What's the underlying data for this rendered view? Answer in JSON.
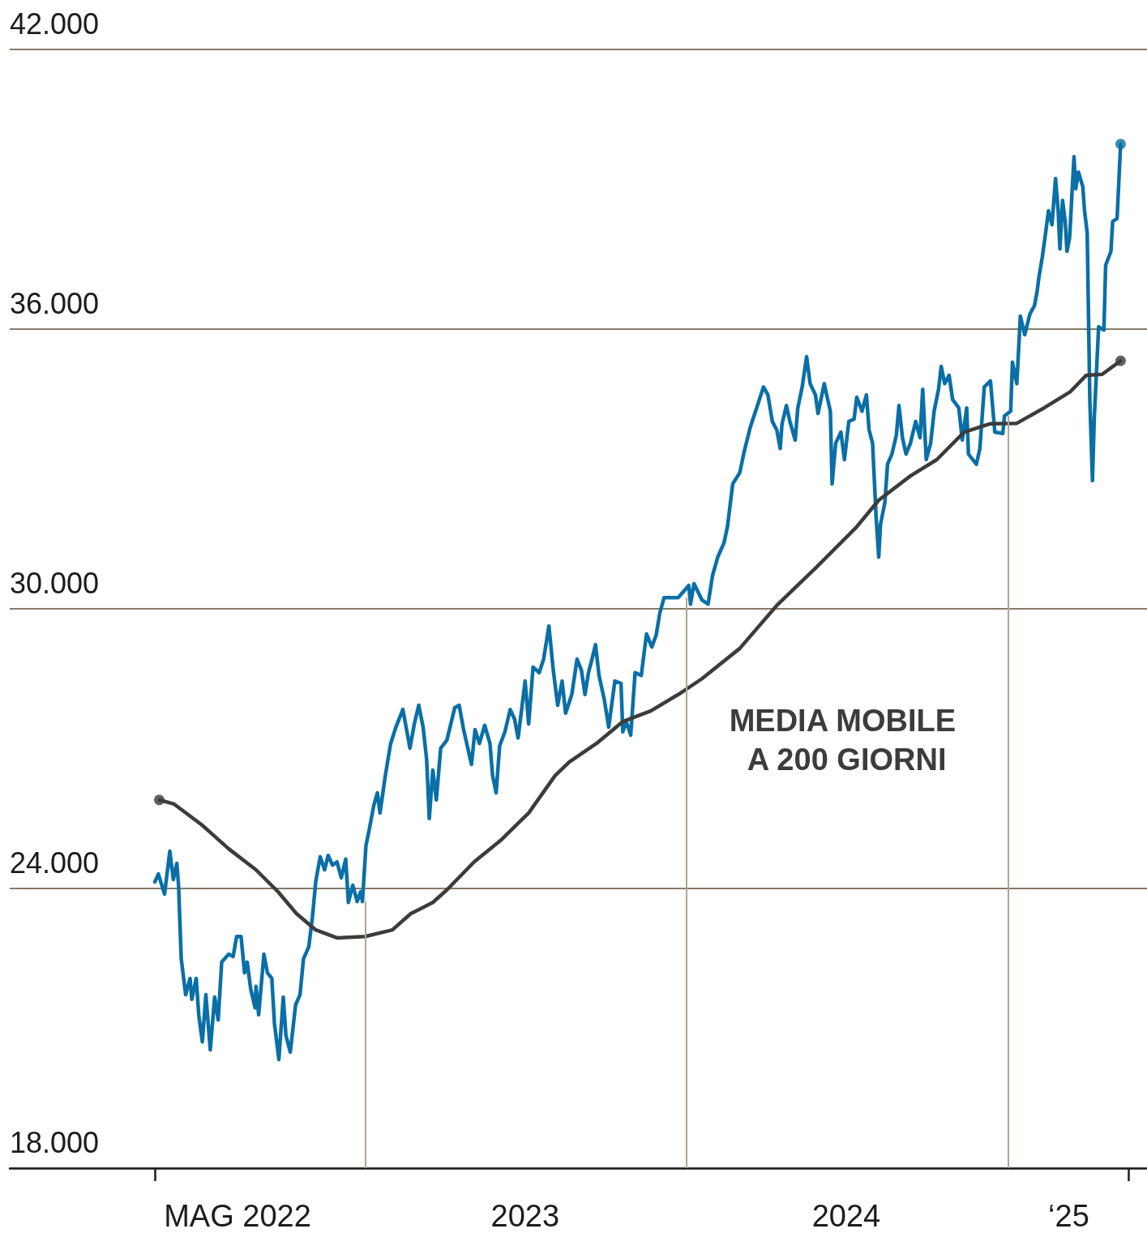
{
  "chart_data": {
    "type": "line",
    "xlim": [
      "2021-11-23",
      "2025-06-08"
    ],
    "xticks": [
      {
        "value": "2022-05-07",
        "label": null
      },
      {
        "value": "2022-08-09",
        "label": "MAG 2022"
      },
      {
        "value": "2023-07-02",
        "label": "2023"
      },
      {
        "value": "2024-07-01",
        "label": "2024"
      },
      {
        "value": "2025-03-11",
        "label": "‘25"
      },
      {
        "value": "2025-05-18",
        "label": null
      }
    ],
    "ylim": [
      18000,
      42000
    ],
    "yticks": [
      {
        "value": 18000,
        "label": "18.000"
      },
      {
        "value": 24000,
        "label": "24.000"
      },
      {
        "value": 30000,
        "label": "30.000"
      },
      {
        "value": 36000,
        "label": "36.000"
      },
      {
        "value": 42000,
        "label": "42.000"
      }
    ],
    "grid": "y",
    "ref_lines": [
      {
        "axis": "x",
        "value": "2023-01-01",
        "color": "#b4a48e"
      },
      {
        "axis": "x",
        "value": "2024-01-01",
        "color": "#b4a48e"
      },
      {
        "axis": "x",
        "value": "2025-01-01",
        "color": "#b4a48e"
      }
    ],
    "series": [
      {
        "color": "#0a6fa6",
        "x": [
          "2022-05-07",
          "2022-05-11",
          "2022-05-18",
          "2022-05-24",
          "2022-05-28",
          "2022-06-01",
          "2022-06-03",
          "2022-06-06",
          "2022-06-11",
          "2022-06-16",
          "2022-06-18",
          "2022-06-23",
          "2022-06-26",
          "2022-06-30",
          "2022-07-04",
          "2022-07-09",
          "2022-07-14",
          "2022-07-18",
          "2022-07-22",
          "2022-07-30",
          "2022-08-04",
          "2022-08-08",
          "2022-08-13",
          "2022-08-17",
          "2022-08-20",
          "2022-08-24",
          "2022-08-29",
          "2022-08-30",
          "2022-09-02",
          "2022-09-08",
          "2022-09-12",
          "2022-09-17",
          "2022-09-20",
          "2022-09-25",
          "2022-09-30",
          "2022-10-03",
          "2022-10-08",
          "2022-10-14",
          "2022-10-19",
          "2022-10-23",
          "2022-10-29",
          "2022-11-02",
          "2022-11-06",
          "2022-11-11",
          "2022-11-16",
          "2022-11-20",
          "2022-11-25",
          "2022-11-30",
          "2022-12-05",
          "2022-12-10",
          "2022-12-13",
          "2022-12-18",
          "2022-12-23",
          "2022-12-27",
          "2022-12-29",
          "2023-01-02",
          "2023-01-06",
          "2023-01-11",
          "2023-01-15",
          "2023-01-18",
          "2023-01-24",
          "2023-01-30",
          "2023-02-05",
          "2023-02-13",
          "2023-02-21",
          "2023-02-26",
          "2023-03-03",
          "2023-03-08",
          "2023-03-12",
          "2023-03-15",
          "2023-03-19",
          "2023-03-23",
          "2023-03-28",
          "2023-04-04",
          "2023-04-13",
          "2023-04-18",
          "2023-04-23",
          "2023-05-02",
          "2023-05-06",
          "2023-05-11",
          "2023-05-17",
          "2023-05-23",
          "2023-05-26",
          "2023-05-30",
          "2023-06-03",
          "2023-06-09",
          "2023-06-15",
          "2023-06-20",
          "2023-06-24",
          "2023-07-02",
          "2023-07-06",
          "2023-07-11",
          "2023-07-18",
          "2023-07-23",
          "2023-07-29",
          "2023-08-03",
          "2023-08-08",
          "2023-08-13",
          "2023-08-17",
          "2023-08-24",
          "2023-08-30",
          "2023-09-04",
          "2023-09-08",
          "2023-09-12",
          "2023-09-16",
          "2023-09-20",
          "2023-09-24",
          "2023-09-30",
          "2023-10-05",
          "2023-10-12",
          "2023-10-19",
          "2023-10-21",
          "2023-10-25",
          "2023-10-30",
          "2023-11-04",
          "2023-11-11",
          "2023-11-17",
          "2023-11-23",
          "2023-11-28",
          "2023-12-02",
          "2023-12-07",
          "2023-12-23",
          "2024-01-04",
          "2024-01-06",
          "2024-01-10",
          "2024-01-19",
          "2024-01-26",
          "2024-01-31",
          "2024-02-06",
          "2024-02-13",
          "2024-02-17",
          "2024-02-23",
          "2024-03-02",
          "2024-03-07",
          "2024-03-14",
          "2024-03-20",
          "2024-03-29",
          "2024-04-03",
          "2024-04-08",
          "2024-04-13",
          "2024-04-17",
          "2024-04-19",
          "2024-04-24",
          "2024-04-28",
          "2024-05-04",
          "2024-05-07",
          "2024-05-12",
          "2024-05-17",
          "2024-05-21",
          "2024-05-27",
          "2024-05-30",
          "2024-06-06",
          "2024-06-10",
          "2024-06-13",
          "2024-06-15",
          "2024-06-19",
          "2024-06-25",
          "2024-06-29",
          "2024-07-04",
          "2024-07-10",
          "2024-07-13",
          "2024-07-19",
          "2024-07-24",
          "2024-07-27",
          "2024-07-31",
          "2024-08-04",
          "2024-08-07",
          "2024-08-09",
          "2024-08-14",
          "2024-08-17",
          "2024-08-22",
          "2024-08-27",
          "2024-08-30",
          "2024-09-03",
          "2024-09-07",
          "2024-09-12",
          "2024-09-18",
          "2024-09-23",
          "2024-09-26",
          "2024-09-30",
          "2024-10-05",
          "2024-10-09",
          "2024-10-14",
          "2024-10-17",
          "2024-10-21",
          "2024-10-26",
          "2024-10-30",
          "2024-11-06",
          "2024-11-10",
          "2024-11-15",
          "2024-11-17",
          "2024-11-26",
          "2024-11-30",
          "2024-12-05",
          "2024-12-12",
          "2024-12-17",
          "2024-12-26",
          "2024-12-28",
          "2025-01-04",
          "2025-01-06",
          "2025-01-11",
          "2025-01-15",
          "2025-01-20",
          "2025-01-26",
          "2025-01-31",
          "2025-02-03",
          "2025-02-05",
          "2025-02-09",
          "2025-02-12",
          "2025-02-16",
          "2025-02-20",
          "2025-02-24",
          "2025-02-27",
          "2025-03-01",
          "2025-03-04",
          "2025-03-07",
          "2025-03-09",
          "2025-03-12",
          "2025-03-17",
          "2025-03-19",
          "2025-03-22",
          "2025-03-27",
          "2025-03-29",
          "2025-04-01",
          "2025-04-04",
          "2025-04-07",
          "2025-04-09",
          "2025-04-14",
          "2025-04-20",
          "2025-04-22",
          "2025-04-28",
          "2025-04-30",
          "2025-05-05",
          "2025-05-09"
        ],
        "values": [
          24140,
          24310,
          23880,
          24800,
          24190,
          24540,
          24050,
          22490,
          21720,
          22070,
          21620,
          22070,
          21270,
          20710,
          21720,
          20540,
          21670,
          21180,
          22420,
          22590,
          22540,
          22970,
          22970,
          22190,
          22420,
          21840,
          21440,
          21900,
          21290,
          22590,
          22190,
          22070,
          21100,
          20330,
          21670,
          20850,
          20490,
          21500,
          21720,
          22490,
          22750,
          23360,
          24160,
          24680,
          24400,
          24710,
          24500,
          24570,
          24230,
          24630,
          23700,
          24070,
          23720,
          23930,
          23720,
          24920,
          25290,
          25790,
          26050,
          25620,
          26420,
          27100,
          27460,
          27840,
          27010,
          27530,
          27930,
          27460,
          26770,
          25500,
          26540,
          25900,
          27010,
          27180,
          27880,
          27930,
          27410,
          26660,
          27410,
          27110,
          27500,
          27110,
          26420,
          26050,
          27060,
          27360,
          27840,
          27630,
          27230,
          28450,
          27530,
          28750,
          28630,
          28920,
          29630,
          28680,
          27930,
          28450,
          27760,
          28160,
          28920,
          28680,
          28160,
          28630,
          28920,
          29230,
          28570,
          28050,
          27460,
          28450,
          28400,
          27360,
          27580,
          27290,
          28630,
          28570,
          29460,
          29180,
          29440,
          29900,
          30240,
          30240,
          30500,
          30100,
          30540,
          30190,
          30100,
          30710,
          31110,
          31410,
          31760,
          32680,
          32920,
          33370,
          33900,
          34240,
          34760,
          34590,
          34020,
          33840,
          33440,
          33960,
          34360,
          34020,
          33620,
          34310,
          34760,
          35410,
          34830,
          34590,
          34190,
          34830,
          34490,
          34240,
          32680,
          33550,
          33790,
          33200,
          34020,
          34070,
          34540,
          34240,
          34590,
          33840,
          33550,
          31980,
          31110,
          31810,
          32280,
          33100,
          33320,
          33720,
          34360,
          33670,
          33320,
          33550,
          34020,
          33670,
          34710,
          33200,
          33550,
          34240,
          34710,
          35200,
          34830,
          35010,
          34490,
          34310,
          33620,
          34310,
          33320,
          33100,
          33440,
          34760,
          34890,
          33790,
          33760,
          34140,
          34240,
          35290,
          34830,
          36280,
          35880,
          36330,
          36500,
          36800,
          37100,
          37550,
          37960,
          38540,
          38240,
          39230,
          38540,
          37720,
          38760,
          38310,
          37670,
          37960,
          39700,
          39010,
          39370,
          39060,
          38540,
          38070,
          34490,
          32750,
          34070,
          36050,
          35980,
          37370,
          37670,
          38310,
          38370,
          39970
        ]
      },
      {
        "name": "MEDIA MOBILE A 200 GIORNI",
        "color": "#3c3c3c",
        "x": [
          "2022-05-12",
          "2022-05-29",
          "2022-06-29",
          "2022-07-30",
          "2022-08-30",
          "2022-09-24",
          "2022-10-15",
          "2022-11-06",
          "2022-11-30",
          "2023-01-01",
          "2023-02-01",
          "2023-02-22",
          "2023-03-19",
          "2023-04-04",
          "2023-05-05",
          "2023-06-04",
          "2023-07-06",
          "2023-08-05",
          "2023-08-21",
          "2023-09-21",
          "2023-10-21",
          "2023-11-22",
          "2023-12-23",
          "2024-01-19",
          "2024-03-02",
          "2024-04-13",
          "2024-05-28",
          "2024-07-13",
          "2024-08-07",
          "2024-09-12",
          "2024-10-12",
          "2024-11-12",
          "2024-12-12",
          "2025-01-11",
          "2025-02-11",
          "2025-03-13",
          "2025-03-31",
          "2025-04-18",
          "2025-05-09"
        ],
        "values": [
          25900,
          25810,
          25370,
          24850,
          24400,
          23930,
          23460,
          23110,
          22940,
          22970,
          23110,
          23460,
          23700,
          23970,
          24570,
          25030,
          25620,
          26420,
          26710,
          27110,
          27580,
          27810,
          28160,
          28500,
          29150,
          30070,
          30890,
          31760,
          32330,
          32850,
          33200,
          33790,
          33970,
          33980,
          34310,
          34660,
          35010,
          35030,
          35320
        ]
      },
      {
        "type": "scatter",
        "color": "#0a6fa6",
        "marker": "circle",
        "x": [
          "2025-05-09"
        ],
        "values": [
          39970
        ]
      },
      {
        "type": "scatter",
        "color": "#3c3c3c",
        "marker": "circle",
        "x": [
          "2022-05-12",
          "2025-05-09"
        ],
        "values": [
          25900,
          35320
        ]
      }
    ]
  }
}
